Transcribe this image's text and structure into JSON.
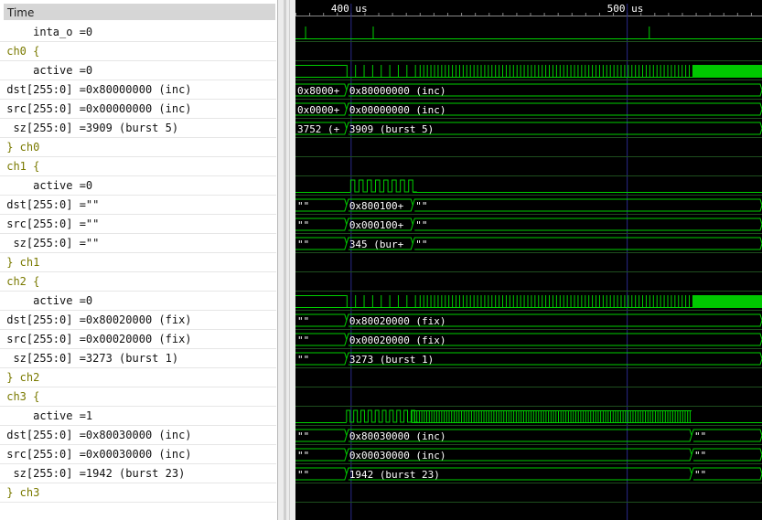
{
  "names_panel": {
    "header": "Time",
    "rows": [
      {
        "indent": "    ",
        "text": "inta_o =0",
        "group": false
      },
      {
        "indent": "",
        "text": "ch0 {",
        "group": true
      },
      {
        "indent": "    ",
        "text": "active =0",
        "group": false
      },
      {
        "indent": "",
        "text": "dst[255:0] =0x80000000 (inc)",
        "group": false
      },
      {
        "indent": "",
        "text": "src[255:0] =0x00000000 (inc)",
        "group": false
      },
      {
        "indent": " ",
        "text": "sz[255:0] =3909 (burst 5)",
        "group": false
      },
      {
        "indent": "",
        "text": "} ch0",
        "group": true
      },
      {
        "indent": "",
        "text": "ch1 {",
        "group": true
      },
      {
        "indent": "    ",
        "text": "active =0",
        "group": false
      },
      {
        "indent": "",
        "text": "dst[255:0] =\"\"",
        "group": false
      },
      {
        "indent": "",
        "text": "src[255:0] =\"\"",
        "group": false
      },
      {
        "indent": " ",
        "text": "sz[255:0] =\"\"",
        "group": false
      },
      {
        "indent": "",
        "text": "} ch1",
        "group": true
      },
      {
        "indent": "",
        "text": "ch2 {",
        "group": true
      },
      {
        "indent": "    ",
        "text": "active =0",
        "group": false
      },
      {
        "indent": "",
        "text": "dst[255:0] =0x80020000 (fix)",
        "group": false
      },
      {
        "indent": "",
        "text": "src[255:0] =0x00020000 (fix)",
        "group": false
      },
      {
        "indent": " ",
        "text": "sz[255:0] =3273 (burst 1)",
        "group": false
      },
      {
        "indent": "",
        "text": "} ch2",
        "group": true
      },
      {
        "indent": "",
        "text": "ch3 {",
        "group": true
      },
      {
        "indent": "    ",
        "text": "active =1",
        "group": false
      },
      {
        "indent": "",
        "text": "dst[255:0] =0x80030000 (inc)",
        "group": false
      },
      {
        "indent": "",
        "text": "src[255:0] =0x00030000 (inc)",
        "group": false
      },
      {
        "indent": " ",
        "text": "sz[255:0] =1942 (burst 23)",
        "group": false
      },
      {
        "indent": "",
        "text": "} ch3",
        "group": true
      }
    ]
  },
  "timeline": {
    "start_us": 380,
    "end_us": 549,
    "major_ticks": [
      {
        "t_us": 400,
        "label": "400 us"
      },
      {
        "t_us": 500,
        "label": "500 us"
      }
    ],
    "minor_step_us": 10
  },
  "colors": {
    "wave": "#00d000",
    "wave_fill": "#00c800",
    "text": "#ffffff",
    "grid": "#2a2a8a",
    "row_line": "#1e4e1e"
  },
  "waves": [
    {
      "row": 0,
      "kind": "pulses",
      "times_us": [
        383.5,
        408,
        508
      ]
    },
    {
      "row": 1,
      "kind": "none"
    },
    {
      "row": 2,
      "kind": "activity",
      "start_us": 398.5,
      "sparse": [
        [
          398.5,
          1.5
        ],
        [
          402,
          2.5
        ]
      ],
      "sparse_end": 424,
      "sparse_step": 3.1,
      "dense_start": 425,
      "dense_end": 524,
      "dense_step": 1.3,
      "solid_start": 524,
      "solid_end": 549
    },
    {
      "row": 3,
      "kind": "bus",
      "segments": [
        {
          "t0": 380,
          "t1": 398.5,
          "label": "0x8000+"
        },
        {
          "t0": 398.5,
          "t1": 549,
          "label": "0x80000000 (inc)"
        }
      ]
    },
    {
      "row": 4,
      "kind": "bus",
      "segments": [
        {
          "t0": 380,
          "t1": 398.5,
          "label": "0x0000+"
        },
        {
          "t0": 398.5,
          "t1": 549,
          "label": "0x00000000 (inc)"
        }
      ]
    },
    {
      "row": 5,
      "kind": "bus",
      "segments": [
        {
          "t0": 380,
          "t1": 398.5,
          "label": "3752 (+"
        },
        {
          "t0": 398.5,
          "t1": 549,
          "label": "3909 (burst 5)"
        }
      ]
    },
    {
      "row": 6,
      "kind": "none"
    },
    {
      "row": 7,
      "kind": "none"
    },
    {
      "row": 8,
      "kind": "clock",
      "start_us": 400,
      "end_us": 422.5,
      "period_us": 3.0
    },
    {
      "row": 9,
      "kind": "bus",
      "segments": [
        {
          "t0": 380,
          "t1": 398.5,
          "label": "\"\"",
          "empty": true
        },
        {
          "t0": 398.5,
          "t1": 422.5,
          "label": "0x800100+"
        },
        {
          "t0": 422.5,
          "t1": 549,
          "label": "\"\"",
          "empty": true
        }
      ]
    },
    {
      "row": 10,
      "kind": "bus",
      "segments": [
        {
          "t0": 380,
          "t1": 398.5,
          "label": "\"\"",
          "empty": true
        },
        {
          "t0": 398.5,
          "t1": 422.5,
          "label": "0x000100+"
        },
        {
          "t0": 422.5,
          "t1": 549,
          "label": "\"\"",
          "empty": true
        }
      ]
    },
    {
      "row": 11,
      "kind": "bus",
      "segments": [
        {
          "t0": 380,
          "t1": 398.5,
          "label": "\"\"",
          "empty": true
        },
        {
          "t0": 398.5,
          "t1": 422.5,
          "label": "345 (bur+"
        },
        {
          "t0": 422.5,
          "t1": 549,
          "label": "\"\"",
          "empty": true
        }
      ]
    },
    {
      "row": 12,
      "kind": "none"
    },
    {
      "row": 13,
      "kind": "none"
    },
    {
      "row": 14,
      "kind": "activity",
      "start_us": 398.5,
      "sparse": [
        [
          398.5,
          1.5
        ],
        [
          402,
          2.5
        ]
      ],
      "sparse_end": 424,
      "sparse_step": 3.1,
      "dense_start": 425,
      "dense_end": 524,
      "dense_step": 1.3,
      "solid_start": 524,
      "solid_end": 549
    },
    {
      "row": 15,
      "kind": "bus",
      "segments": [
        {
          "t0": 380,
          "t1": 398.5,
          "label": "\"\"",
          "empty": true
        },
        {
          "t0": 398.5,
          "t1": 549,
          "label": "0x80020000 (fix)"
        }
      ]
    },
    {
      "row": 16,
      "kind": "bus",
      "segments": [
        {
          "t0": 380,
          "t1": 398.5,
          "label": "\"\"",
          "empty": true
        },
        {
          "t0": 398.5,
          "t1": 549,
          "label": "0x00020000 (fix)"
        }
      ]
    },
    {
      "row": 17,
      "kind": "bus",
      "segments": [
        {
          "t0": 380,
          "t1": 398.5,
          "label": "\"\"",
          "empty": true
        },
        {
          "t0": 398.5,
          "t1": 549,
          "label": "3273 (burst 1)"
        }
      ]
    },
    {
      "row": 18,
      "kind": "none"
    },
    {
      "row": 19,
      "kind": "none"
    },
    {
      "row": 20,
      "kind": "ch3active",
      "start_us": 398.5,
      "clock_end_us": 422,
      "period_us": 2.6,
      "dense_end_us": 523.5
    },
    {
      "row": 21,
      "kind": "bus",
      "segments": [
        {
          "t0": 380,
          "t1": 398.5,
          "label": "\"\"",
          "empty": true
        },
        {
          "t0": 398.5,
          "t1": 523.5,
          "label": "0x80030000 (inc)"
        },
        {
          "t0": 523.5,
          "t1": 549,
          "label": "\"\"",
          "empty": true
        }
      ]
    },
    {
      "row": 22,
      "kind": "bus",
      "segments": [
        {
          "t0": 380,
          "t1": 398.5,
          "label": "\"\"",
          "empty": true
        },
        {
          "t0": 398.5,
          "t1": 523.5,
          "label": "0x00030000 (inc)"
        },
        {
          "t0": 523.5,
          "t1": 549,
          "label": "\"\"",
          "empty": true
        }
      ]
    },
    {
      "row": 23,
      "kind": "bus",
      "segments": [
        {
          "t0": 380,
          "t1": 398.5,
          "label": "\"\"",
          "empty": true
        },
        {
          "t0": 398.5,
          "t1": 523.5,
          "label": "1942 (burst 23)"
        },
        {
          "t0": 523.5,
          "t1": 549,
          "label": "\"\"",
          "empty": true
        }
      ]
    },
    {
      "row": 24,
      "kind": "none"
    }
  ]
}
